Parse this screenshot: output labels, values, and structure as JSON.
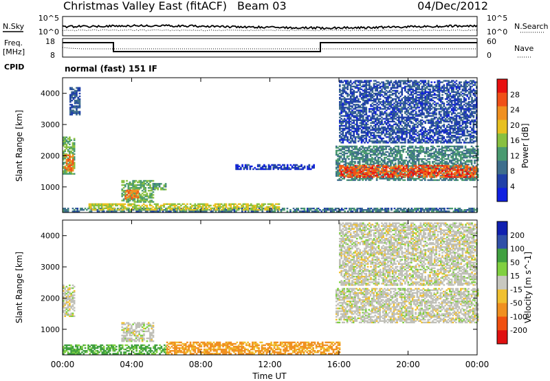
{
  "header": {
    "title": "Christmas Valley East (fitACF)",
    "beam": "Beam 03",
    "date": "04/Dec/2012"
  },
  "noise_panel": {
    "left_label": "N.Sky",
    "left_ticks": [
      "10^5",
      "10^0"
    ],
    "right_ticks": [
      "10^5",
      "10^0"
    ],
    "right_label": "N.Search"
  },
  "freq_panel": {
    "left_label_1": "Freq.",
    "left_label_2": "[MHz]",
    "left_ticks": [
      "18",
      "8"
    ],
    "right_ticks": [
      "60",
      "0"
    ],
    "right_label": "Nave",
    "cpid_label": "CPID",
    "cpid_value": "normal (fast) 151 IF"
  },
  "colors": {
    "power_scale": [
      "#1020e0",
      "#2040a8",
      "#3e6e8c",
      "#4a9a70",
      "#88c040",
      "#e8c020",
      "#f09020",
      "#f05018",
      "#e81010"
    ],
    "velocity_scale": [
      "#1020b0",
      "#3050a8",
      "#40a040",
      "#80d040",
      "#c8c8c0",
      "#f0c030",
      "#f09020",
      "#f05010",
      "#e01010"
    ],
    "ground_scatter": "#c0c0b8"
  },
  "chart_data": [
    {
      "type": "heatmap",
      "name": "power",
      "ylabel": "Slant Range [km]",
      "xlabel": "Time UT",
      "x_ticks": [
        "00:00",
        "04:00",
        "08:00",
        "12:00",
        "16:00",
        "20:00",
        "00:00"
      ],
      "y_ticks": [
        "1000",
        "2000",
        "3000",
        "4000"
      ],
      "ylim": [
        180,
        4500
      ],
      "xlim_hours": [
        0,
        24
      ],
      "colorbar_label": "Power [dB]",
      "colorbar_ticks": [
        "4",
        "8",
        "12",
        "16",
        "20",
        "24",
        "28"
      ],
      "colorbar_range": [
        0,
        32
      ],
      "features": [
        {
          "t": [
            0.0,
            0.7
          ],
          "r": [
            1400,
            2600
          ],
          "v": 14
        },
        {
          "t": [
            0.1,
            0.6
          ],
          "r": [
            1500,
            2000
          ],
          "v": 26
        },
        {
          "t": [
            0.4,
            1.0
          ],
          "r": [
            3300,
            4200
          ],
          "v": 6
        },
        {
          "t": [
            3.4,
            5.2
          ],
          "r": [
            500,
            1200
          ],
          "v": 14
        },
        {
          "t": [
            3.6,
            4.4
          ],
          "r": [
            600,
            900
          ],
          "v": 26
        },
        {
          "t": [
            5.2,
            6.0
          ],
          "r": [
            900,
            1100
          ],
          "v": 12
        },
        {
          "t": [
            0.0,
            24.0
          ],
          "r": [
            200,
            320
          ],
          "v": 8
        },
        {
          "t": [
            1.5,
            12.5
          ],
          "r": [
            250,
            450
          ],
          "v": 18
        },
        {
          "t": [
            10.0,
            14.5
          ],
          "r": [
            1550,
            1700
          ],
          "v": 3
        },
        {
          "t": [
            15.8,
            24.0
          ],
          "r": [
            1200,
            2300
          ],
          "v": 10
        },
        {
          "t": [
            16.0,
            24.0
          ],
          "r": [
            1300,
            1700
          ],
          "v": 28
        },
        {
          "t": [
            16.0,
            24.0
          ],
          "r": [
            2400,
            4400
          ],
          "v": 5
        }
      ]
    },
    {
      "type": "heatmap",
      "name": "velocity",
      "ylabel": "Slant Range [km]",
      "xlabel": "Time UT",
      "x_ticks": [
        "00:00",
        "04:00",
        "08:00",
        "12:00",
        "16:00",
        "20:00",
        "00:00"
      ],
      "y_ticks": [
        "1000",
        "2000",
        "3000",
        "4000"
      ],
      "ylim": [
        180,
        4500
      ],
      "xlim_hours": [
        0,
        24
      ],
      "colorbar_label": "Velocity [m s^-1]",
      "colorbar_ticks": [
        "200",
        "100",
        "50",
        "15",
        "-15",
        "-50",
        "-100",
        "-200"
      ],
      "features": [
        {
          "t": [
            0.0,
            0.7
          ],
          "r": [
            1400,
            2400
          ],
          "v": 0
        },
        {
          "t": [
            3.4,
            5.2
          ],
          "r": [
            600,
            1200
          ],
          "v": 0
        },
        {
          "t": [
            0.0,
            6.0
          ],
          "r": [
            200,
            500
          ],
          "v": 60
        },
        {
          "t": [
            6.0,
            16.0
          ],
          "r": [
            200,
            600
          ],
          "v": -60
        },
        {
          "t": [
            15.8,
            24.0
          ],
          "r": [
            1200,
            2300
          ],
          "v": 0
        },
        {
          "t": [
            16.0,
            24.0
          ],
          "r": [
            2400,
            4400
          ],
          "v": 0
        }
      ]
    }
  ]
}
